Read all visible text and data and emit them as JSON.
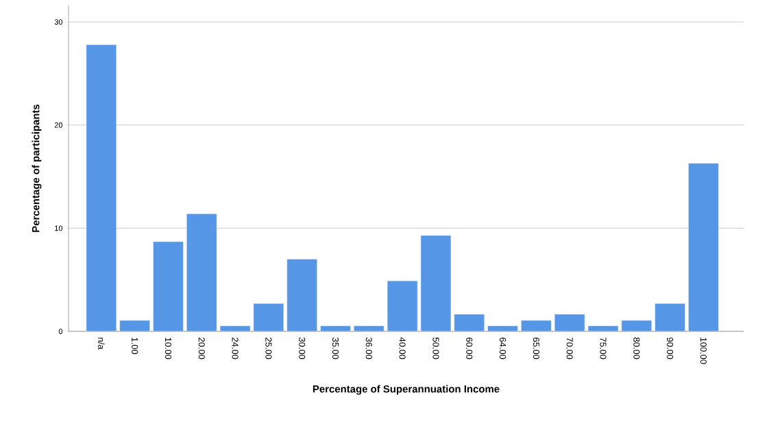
{
  "chart_data": {
    "type": "bar",
    "xlabel": "Percentage of Superannuation Income",
    "ylabel": "Percentage of participants",
    "categories": [
      "n/a",
      "1.00",
      "10.00",
      "20.00",
      "24.00",
      "25.00",
      "30.00",
      "35.00",
      "36.00",
      "40.00",
      "50.00",
      "60.00",
      "64.00",
      "65.00",
      "70.00",
      "75.00",
      "80.00",
      "90.00",
      "100.00"
    ],
    "values": [
      27.8,
      1.06,
      8.7,
      11.4,
      0.53,
      2.7,
      7.0,
      0.53,
      0.53,
      4.9,
      9.3,
      1.66,
      0.53,
      1.06,
      1.66,
      0.53,
      1.06,
      2.7,
      16.3
    ],
    "color": "#5596e6",
    "ylim": [
      0,
      31.6
    ],
    "yticks": [
      0,
      10,
      20,
      30
    ],
    "grid": "y"
  }
}
